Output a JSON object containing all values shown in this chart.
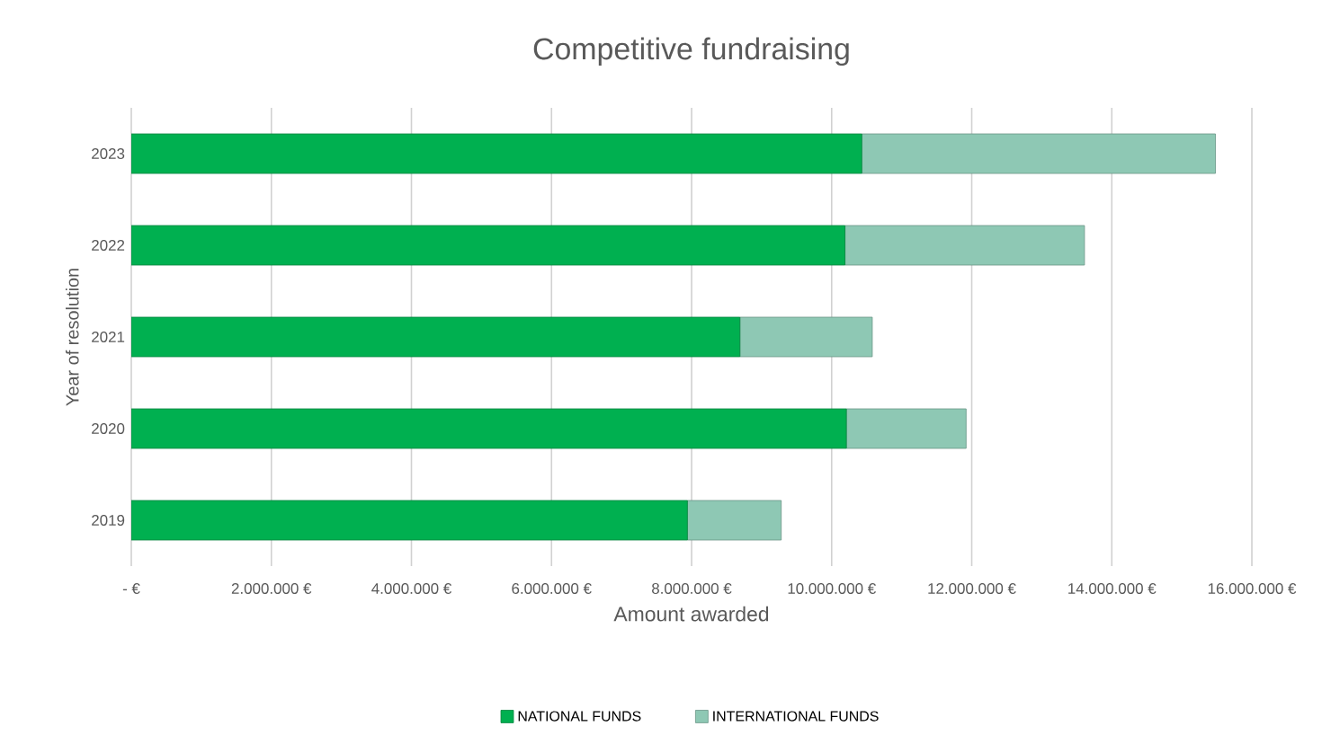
{
  "chart_data": {
    "type": "bar",
    "orientation": "horizontal",
    "stacked": true,
    "title": "Competitive fundraising",
    "xlabel": "Amount awarded",
    "ylabel": "Year of resolution",
    "categories": [
      "2023",
      "2022",
      "2021",
      "2020",
      "2019"
    ],
    "series": [
      {
        "name": "NATIONAL FUNDS",
        "color": "#00b050",
        "values": [
          10430000,
          10190000,
          8690000,
          10210000,
          7940000
        ]
      },
      {
        "name": "INTERNATIONAL FUNDS",
        "color": "#8ec8b4",
        "values": [
          5050000,
          3420000,
          1890000,
          1710000,
          1340000
        ]
      }
    ],
    "xlim": [
      0,
      16000000
    ],
    "xticks": [
      {
        "value": 0,
        "label": "-  €"
      },
      {
        "value": 2000000,
        "label": "2.000.000 €"
      },
      {
        "value": 4000000,
        "label": "4.000.000 €"
      },
      {
        "value": 6000000,
        "label": "6.000.000 €"
      },
      {
        "value": 8000000,
        "label": "8.000.000 €"
      },
      {
        "value": 10000000,
        "label": "10.000.000 €"
      },
      {
        "value": 12000000,
        "label": "12.000.000 €"
      },
      {
        "value": 14000000,
        "label": "14.000.000 €"
      },
      {
        "value": 16000000,
        "label": "16.000.000 €"
      }
    ],
    "grid": "x",
    "legend": "bottom"
  }
}
